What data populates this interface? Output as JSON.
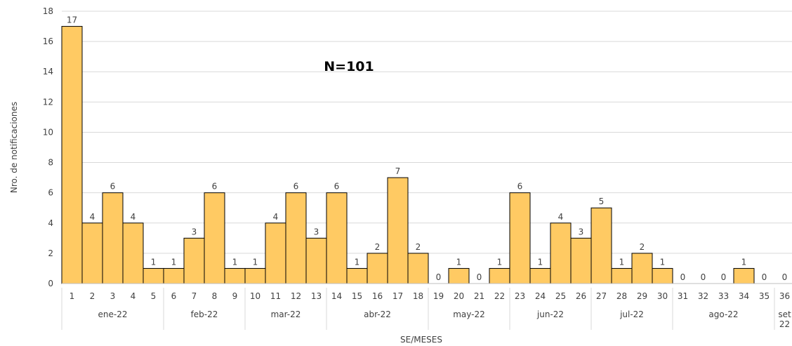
{
  "chart_data": {
    "type": "bar",
    "annotation": "N=101",
    "xlabel": "SE/MESES",
    "ylabel": "Nro. de notificaciones",
    "ylim": [
      0,
      18
    ],
    "yticks": [
      0,
      2,
      4,
      6,
      8,
      10,
      12,
      14,
      16,
      18
    ],
    "grid": true,
    "bar_color": "#FFCA63",
    "bar_edge_color": "#000000",
    "categories": [
      "1",
      "2",
      "3",
      "4",
      "5",
      "6",
      "7",
      "8",
      "9",
      "10",
      "11",
      "12",
      "13",
      "14",
      "15",
      "16",
      "17",
      "18",
      "19",
      "20",
      "21",
      "22",
      "23",
      "24",
      "25",
      "26",
      "27",
      "28",
      "29",
      "30",
      "31",
      "32",
      "33",
      "34",
      "35",
      "36"
    ],
    "values": [
      17,
      4,
      6,
      4,
      1,
      1,
      3,
      6,
      1,
      1,
      4,
      6,
      3,
      6,
      1,
      2,
      7,
      2,
      0,
      1,
      0,
      1,
      6,
      1,
      4,
      3,
      5,
      1,
      2,
      1,
      0,
      0,
      0,
      1,
      0,
      0
    ],
    "month_groups": [
      {
        "label": "ene-22",
        "weeks": [
          1,
          5
        ]
      },
      {
        "label": "feb-22",
        "weeks": [
          6,
          9
        ]
      },
      {
        "label": "mar-22",
        "weeks": [
          10,
          13
        ]
      },
      {
        "label": "abr-22",
        "weeks": [
          14,
          18
        ]
      },
      {
        "label": "may-22",
        "weeks": [
          19,
          22
        ]
      },
      {
        "label": "jun-22",
        "weeks": [
          23,
          26
        ]
      },
      {
        "label": "jul-22",
        "weeks": [
          27,
          30
        ]
      },
      {
        "label": "ago-22",
        "weeks": [
          31,
          35
        ]
      },
      {
        "label": "set 22",
        "weeks": [
          36,
          36
        ]
      }
    ]
  }
}
